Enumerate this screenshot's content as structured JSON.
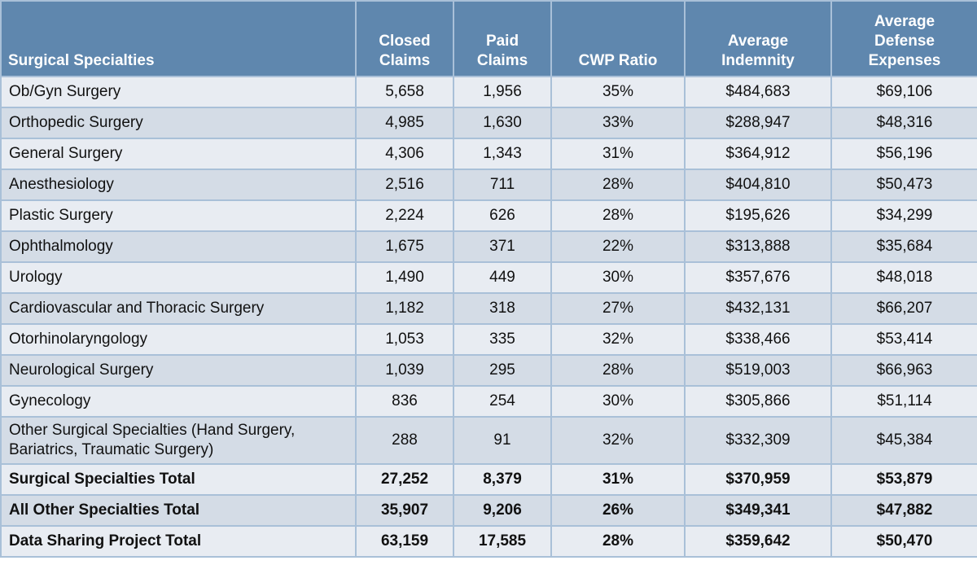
{
  "table": {
    "headers": [
      "Surgical Specialties",
      "Closed Claims",
      "Paid Claims",
      "CWP Ratio",
      "Average Indemnity",
      "Average Defense Expenses"
    ],
    "rows": [
      [
        "Ob/Gyn Surgery",
        "5,658",
        "1,956",
        "35%",
        "$484,683",
        "$69,106"
      ],
      [
        "Orthopedic Surgery",
        "4,985",
        "1,630",
        "33%",
        "$288,947",
        "$48,316"
      ],
      [
        "General Surgery",
        "4,306",
        "1,343",
        "31%",
        "$364,912",
        "$56,196"
      ],
      [
        "Anesthesiology",
        "2,516",
        "711",
        "28%",
        "$404,810",
        "$50,473"
      ],
      [
        "Plastic Surgery",
        "2,224",
        "626",
        "28%",
        "$195,626",
        "$34,299"
      ],
      [
        "Ophthalmology",
        "1,675",
        "371",
        "22%",
        "$313,888",
        "$35,684"
      ],
      [
        "Urology",
        "1,490",
        "449",
        "30%",
        "$357,676",
        "$48,018"
      ],
      [
        "Cardiovascular and Thoracic Surgery",
        "1,182",
        "318",
        "27%",
        "$432,131",
        "$66,207"
      ],
      [
        "Otorhinolaryngology",
        "1,053",
        "335",
        "32%",
        "$338,466",
        "$53,414"
      ],
      [
        "Neurological Surgery",
        "1,039",
        "295",
        "28%",
        "$519,003",
        "$66,963"
      ],
      [
        "Gynecology",
        "836",
        "254",
        "30%",
        "$305,866",
        "$51,114"
      ],
      [
        "Other Surgical Specialties (Hand Surgery, Bariatrics, Traumatic Surgery)",
        "288",
        "91",
        "32%",
        "$332,309",
        "$45,384"
      ],
      [
        "Surgical Specialties Total",
        "27,252",
        "8,379",
        "31%",
        "$370,959",
        "$53,879"
      ],
      [
        "All Other Specialties Total",
        "35,907",
        "9,206",
        "26%",
        "$349,341",
        "$47,882"
      ],
      [
        "Data Sharing Project Total",
        "63,159",
        "17,585",
        "28%",
        "$359,642",
        "$50,470"
      ]
    ]
  }
}
